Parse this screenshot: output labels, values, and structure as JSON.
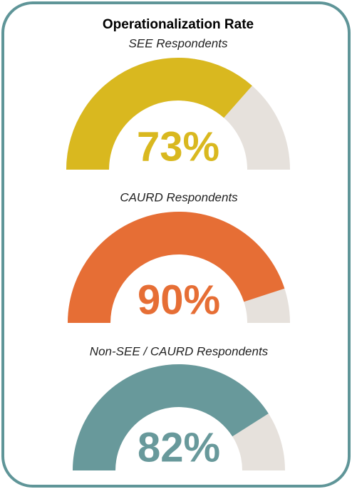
{
  "title": "Operationalization Rate",
  "chart_data": [
    {
      "type": "gauge",
      "subtitle": "SEE Respondents",
      "values": [
        73
      ],
      "value_labels": [
        "73%"
      ],
      "ylim": [
        0,
        100
      ],
      "color": "#d9b81f",
      "track_color": "#e6e1dc"
    },
    {
      "type": "gauge",
      "subtitle": "CAURD Respondents",
      "values": [
        90
      ],
      "value_labels": [
        "90%"
      ],
      "ylim": [
        0,
        100
      ],
      "color": "#e66e35",
      "track_color": "#e6e1dc"
    },
    {
      "type": "gauge",
      "subtitle": "Non-SEE / CAURD Respondents",
      "values": [
        82
      ],
      "value_labels": [
        "82%"
      ],
      "ylim": [
        0,
        100
      ],
      "color": "#68999b",
      "track_color": "#e6e1dc"
    }
  ]
}
